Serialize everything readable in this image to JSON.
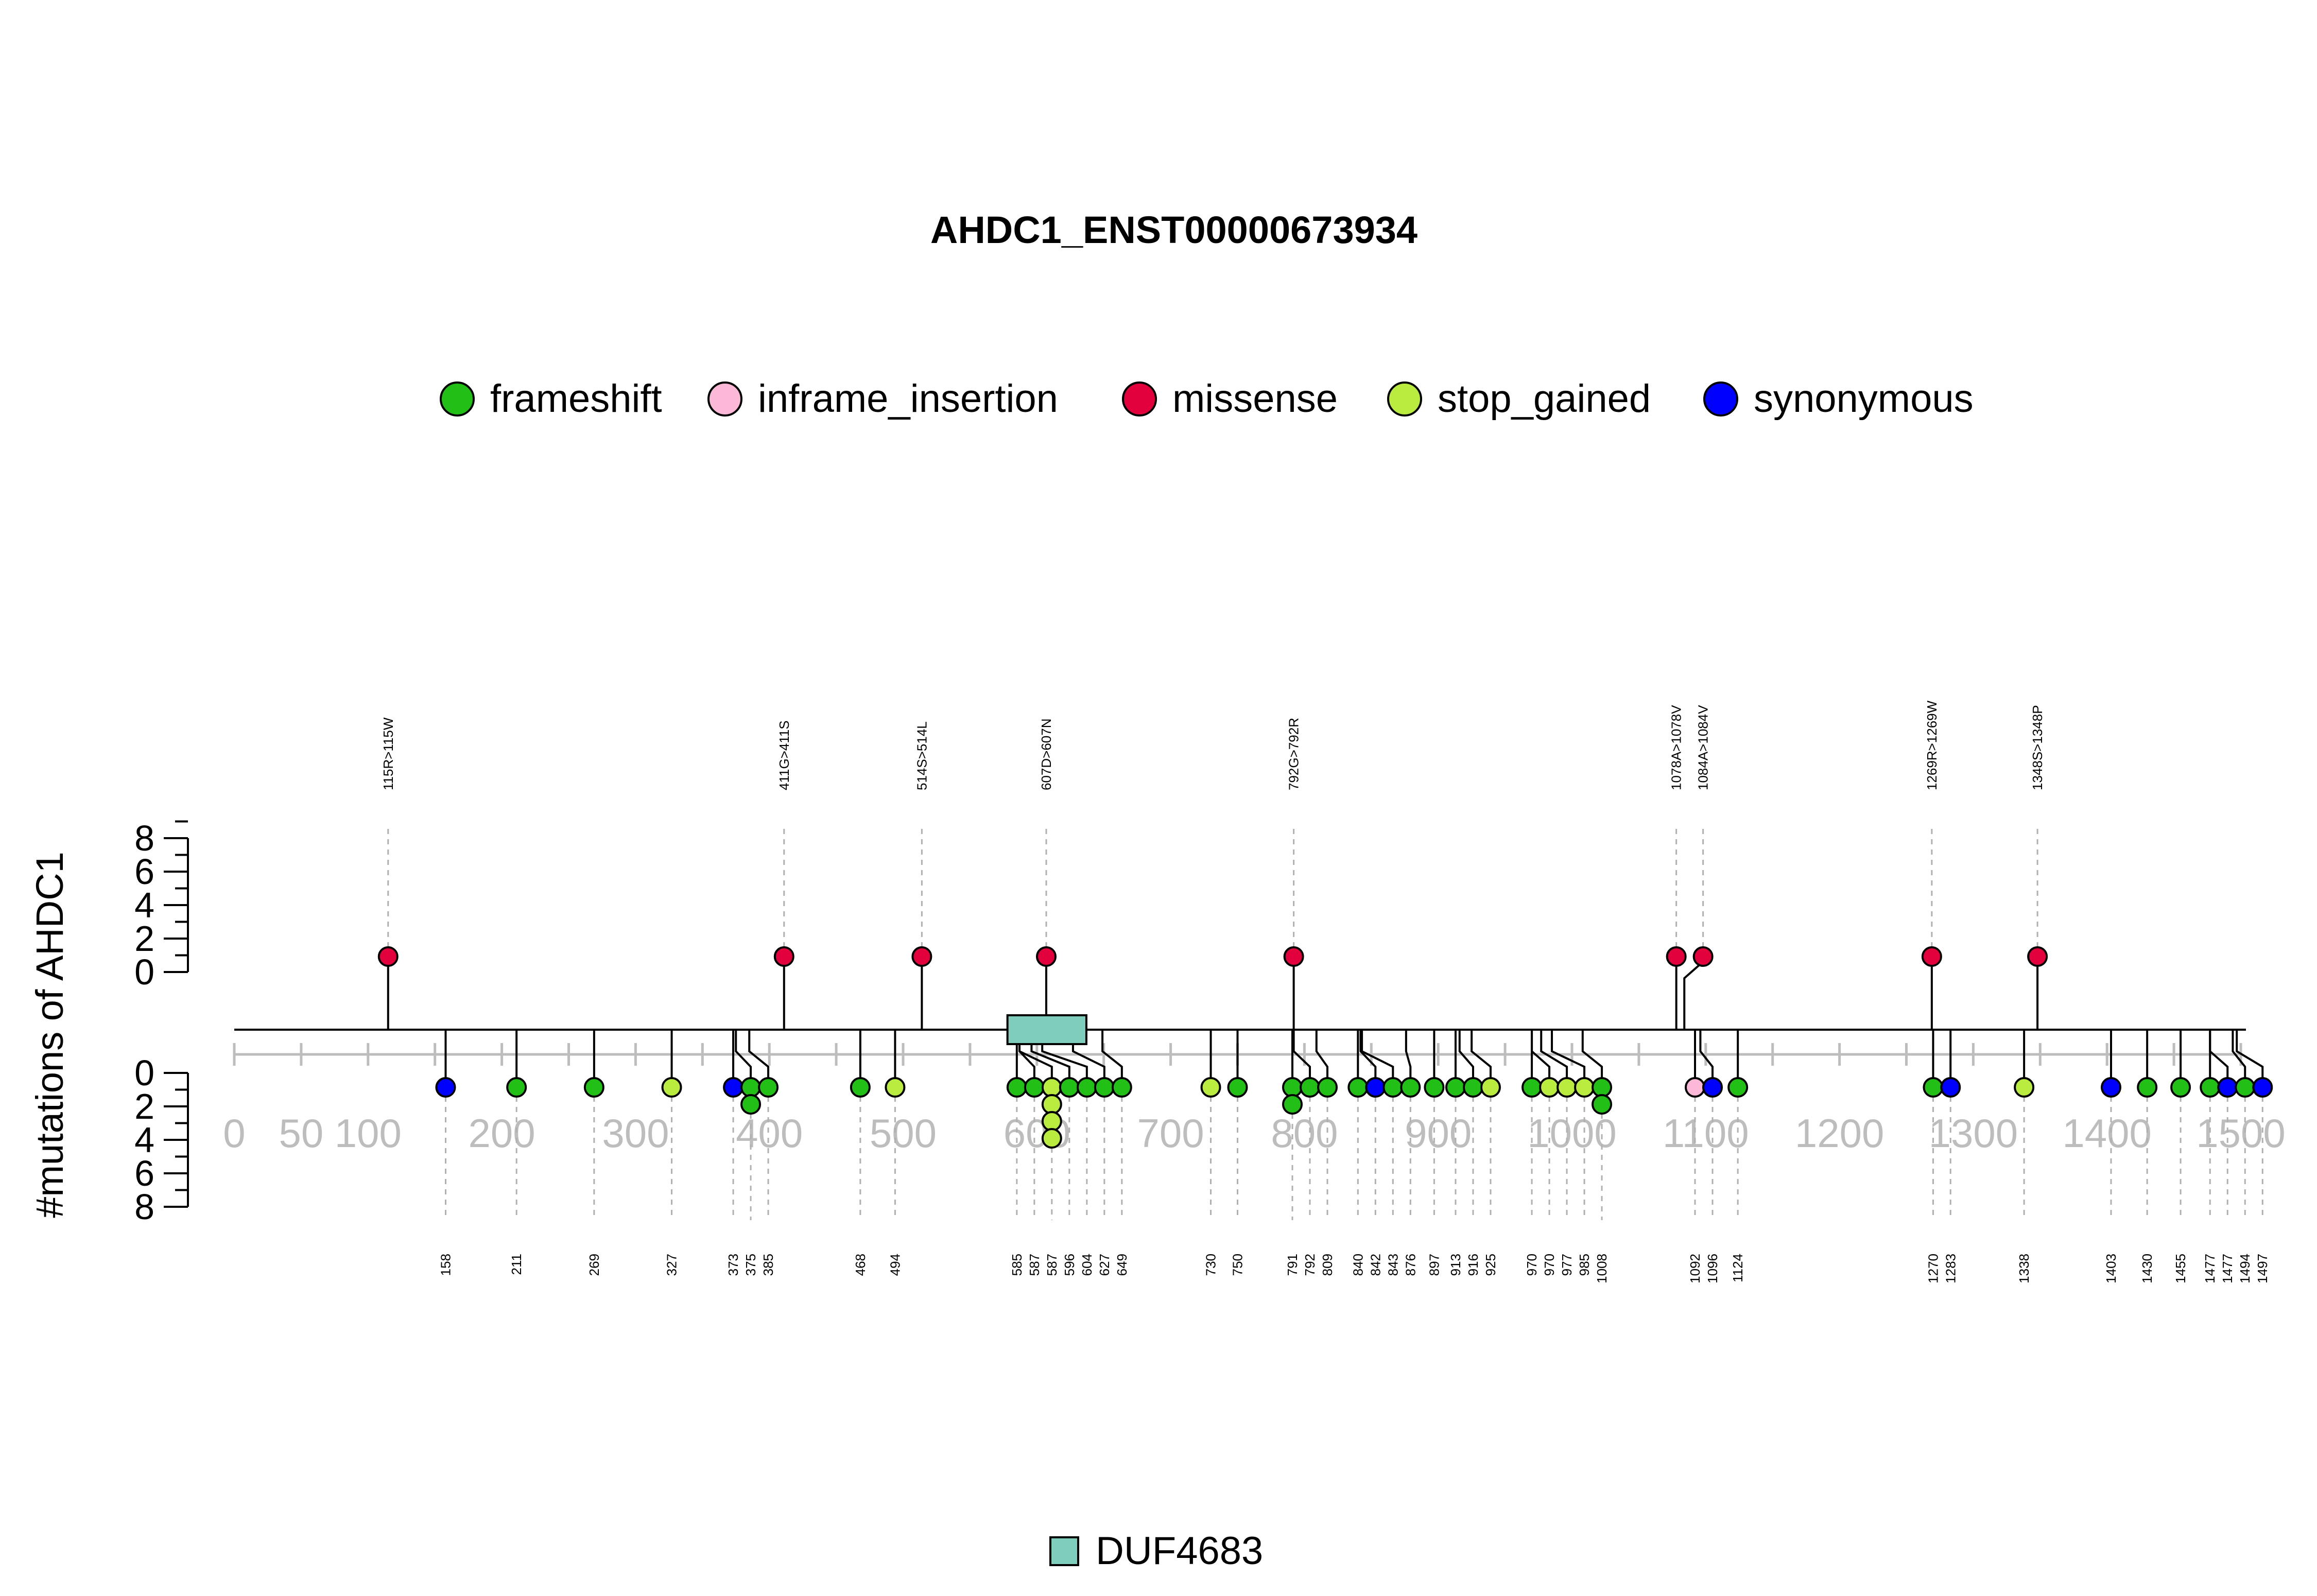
{
  "chart_data": {
    "type": "lollipop",
    "title": "AHDC1_ENST00000673934",
    "ylabel": "#mutations of AHDC1",
    "x_ticks": [
      0,
      50,
      100,
      200,
      300,
      400,
      500,
      600,
      700,
      800,
      900,
      1000,
      1100,
      1200,
      1300,
      1400,
      1500
    ],
    "x_tick_labels": [
      "0",
      "50",
      "100",
      "200",
      "300",
      "400",
      "500",
      "600",
      "700",
      "800",
      "900",
      "1000",
      "1100",
      "1200",
      "1300",
      "1400",
      "1500"
    ],
    "xlim": [
      0,
      1500
    ],
    "y_ticks": [
      0,
      2,
      4,
      6,
      8
    ],
    "y_tick_labels": [
      "0",
      "2",
      "4",
      "6",
      "8"
    ],
    "ylim": [
      0,
      8
    ],
    "legend": [
      {
        "key": "frameshift",
        "label": "frameshift",
        "color": "#22C017"
      },
      {
        "key": "inframe_insertion",
        "label": "inframe_insertion",
        "color": "#FCB8D7"
      },
      {
        "key": "missense",
        "label": "missense",
        "color": "#E2003D"
      },
      {
        "key": "stop_gained",
        "label": "stop_gained",
        "color": "#B9EC3F"
      },
      {
        "key": "synonymous",
        "label": "synonymous",
        "color": "#0000FF"
      }
    ],
    "domain_legend": [
      {
        "label": "DUF4683",
        "color": "#7FCDBB"
      }
    ],
    "domains": [
      {
        "name": "DUF4683",
        "start": 578,
        "end": 637,
        "color": "#7FCDBB"
      }
    ],
    "upper": [
      {
        "pos": 115,
        "label": "115R>115W",
        "type": "missense",
        "count": 1
      },
      {
        "pos": 411,
        "label": "411G>411S",
        "type": "missense",
        "count": 1
      },
      {
        "pos": 514,
        "label": "514S>514L",
        "type": "missense",
        "count": 1
      },
      {
        "pos": 607,
        "label": "607D>607N",
        "type": "missense",
        "count": 1
      },
      {
        "pos": 792,
        "label": "792G>792R",
        "type": "missense",
        "count": 1
      },
      {
        "pos": 1078,
        "label": "1078A>1078V",
        "type": "missense",
        "count": 1
      },
      {
        "pos": 1084,
        "label": "1084A>1084V",
        "type": "missense",
        "count": 1
      },
      {
        "pos": 1269,
        "label": "1269R>1269W",
        "type": "missense",
        "count": 1
      },
      {
        "pos": 1348,
        "label": "1348S>1348P",
        "type": "missense",
        "count": 1
      }
    ],
    "lower": [
      {
        "pos": 158,
        "label": "158",
        "types": [
          "synonymous"
        ]
      },
      {
        "pos": 211,
        "label": "211",
        "types": [
          "frameshift"
        ]
      },
      {
        "pos": 269,
        "label": "269",
        "types": [
          "frameshift"
        ]
      },
      {
        "pos": 327,
        "label": "327",
        "types": [
          "stop_gained"
        ]
      },
      {
        "pos": 373,
        "label": "373",
        "types": [
          "synonymous"
        ]
      },
      {
        "pos": 375,
        "label": "375",
        "types": [
          "frameshift",
          "frameshift"
        ]
      },
      {
        "pos": 385,
        "label": "385",
        "types": [
          "frameshift"
        ]
      },
      {
        "pos": 468,
        "label": "468",
        "types": [
          "frameshift"
        ]
      },
      {
        "pos": 494,
        "label": "494",
        "types": [
          "stop_gained"
        ]
      },
      {
        "pos": 585,
        "label": "585",
        "types": [
          "frameshift"
        ]
      },
      {
        "pos": 587,
        "label": "587",
        "types": [
          "frameshift"
        ]
      },
      {
        "pos": 587,
        "label": "587",
        "types": [
          "stop_gained",
          "stop_gained",
          "stop_gained",
          "stop_gained"
        ]
      },
      {
        "pos": 596,
        "label": "596",
        "types": [
          "frameshift"
        ]
      },
      {
        "pos": 604,
        "label": "604",
        "types": [
          "frameshift"
        ]
      },
      {
        "pos": 627,
        "label": "627",
        "types": [
          "frameshift"
        ]
      },
      {
        "pos": 649,
        "label": "649",
        "types": [
          "frameshift"
        ]
      },
      {
        "pos": 730,
        "label": "730",
        "types": [
          "stop_gained"
        ]
      },
      {
        "pos": 750,
        "label": "750",
        "types": [
          "frameshift"
        ]
      },
      {
        "pos": 791,
        "label": "791",
        "types": [
          "frameshift",
          "frameshift"
        ]
      },
      {
        "pos": 792,
        "label": "792",
        "types": [
          "frameshift"
        ]
      },
      {
        "pos": 809,
        "label": "809",
        "types": [
          "frameshift"
        ]
      },
      {
        "pos": 840,
        "label": "840",
        "types": [
          "frameshift"
        ]
      },
      {
        "pos": 842,
        "label": "842",
        "types": [
          "synonymous"
        ]
      },
      {
        "pos": 843,
        "label": "843",
        "types": [
          "frameshift"
        ]
      },
      {
        "pos": 876,
        "label": "876",
        "types": [
          "frameshift"
        ]
      },
      {
        "pos": 897,
        "label": "897",
        "types": [
          "frameshift"
        ]
      },
      {
        "pos": 913,
        "label": "913",
        "types": [
          "frameshift"
        ]
      },
      {
        "pos": 916,
        "label": "916",
        "types": [
          "frameshift"
        ]
      },
      {
        "pos": 925,
        "label": "925",
        "types": [
          "stop_gained"
        ]
      },
      {
        "pos": 970,
        "label": "970",
        "types": [
          "frameshift"
        ]
      },
      {
        "pos": 970,
        "label": "970",
        "types": [
          "stop_gained"
        ]
      },
      {
        "pos": 977,
        "label": "977",
        "types": [
          "stop_gained"
        ]
      },
      {
        "pos": 985,
        "label": "985",
        "types": [
          "stop_gained"
        ]
      },
      {
        "pos": 1008,
        "label": "1008",
        "types": [
          "frameshift",
          "frameshift"
        ]
      },
      {
        "pos": 1092,
        "label": "1092",
        "types": [
          "inframe_insertion"
        ]
      },
      {
        "pos": 1096,
        "label": "1096",
        "types": [
          "synonymous"
        ]
      },
      {
        "pos": 1124,
        "label": "1124",
        "types": [
          "frameshift"
        ]
      },
      {
        "pos": 1270,
        "label": "1270",
        "types": [
          "frameshift"
        ]
      },
      {
        "pos": 1283,
        "label": "1283",
        "types": [
          "synonymous"
        ]
      },
      {
        "pos": 1338,
        "label": "1338",
        "types": [
          "stop_gained"
        ]
      },
      {
        "pos": 1403,
        "label": "1403",
        "types": [
          "synonymous"
        ]
      },
      {
        "pos": 1430,
        "label": "1430",
        "types": [
          "frameshift"
        ]
      },
      {
        "pos": 1455,
        "label": "1455",
        "types": [
          "frameshift"
        ]
      },
      {
        "pos": 1477,
        "label": "1477",
        "types": [
          "frameshift"
        ]
      },
      {
        "pos": 1477,
        "label": "1477",
        "types": [
          "synonymous"
        ]
      },
      {
        "pos": 1494,
        "label": "1494",
        "types": [
          "frameshift"
        ]
      },
      {
        "pos": 1497,
        "label": "1497",
        "types": [
          "synonymous"
        ]
      }
    ]
  }
}
